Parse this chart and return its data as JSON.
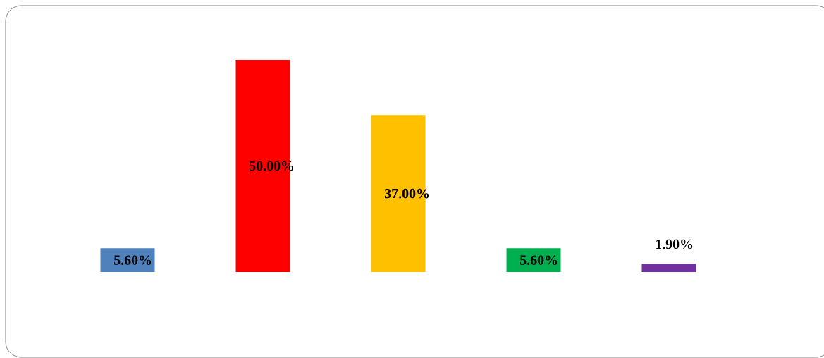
{
  "chart_data": {
    "type": "bar",
    "categories": [
      null,
      null,
      null,
      null,
      null
    ],
    "values": [
      5.6,
      50,
      37,
      5.6,
      1.9
    ],
    "colors": [
      "#4f81bd",
      "#ff0000",
      "#ffc000",
      "#00b050",
      "#7030a0"
    ],
    "value_labels": [
      "5.60%",
      "50.00%",
      "37.00%",
      "5.60%",
      "1.90%"
    ]
  }
}
